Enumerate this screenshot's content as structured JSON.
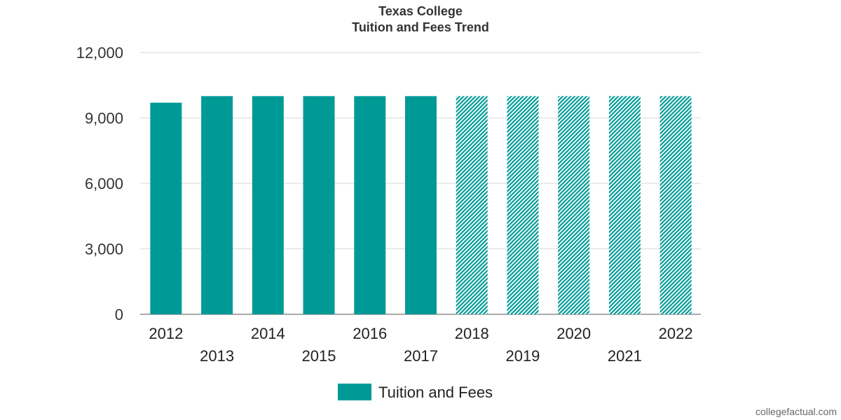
{
  "chart_data": {
    "type": "bar",
    "title": "Texas College",
    "subtitle": "Tuition and Fees Trend",
    "categories": [
      "2012",
      "2013",
      "2014",
      "2015",
      "2016",
      "2017",
      "2018",
      "2019",
      "2020",
      "2021",
      "2022"
    ],
    "series": [
      {
        "name": "Tuition and Fees",
        "values": [
          9700,
          10000,
          10000,
          10000,
          10000,
          10000,
          10000,
          10000,
          10000,
          10000,
          10000
        ],
        "projected": [
          false,
          false,
          false,
          false,
          false,
          false,
          true,
          true,
          true,
          true,
          true
        ],
        "color": "#009a96"
      }
    ],
    "ylim": [
      0,
      12000
    ],
    "yticks": [
      0,
      3000,
      6000,
      9000,
      12000
    ],
    "ytick_labels": [
      "0",
      "3,000",
      "6,000",
      "9,000",
      "12,000"
    ],
    "grid": true,
    "legend_position": "bottom-center",
    "xlabel": "",
    "ylabel": ""
  },
  "credit": "collegefactual.com"
}
